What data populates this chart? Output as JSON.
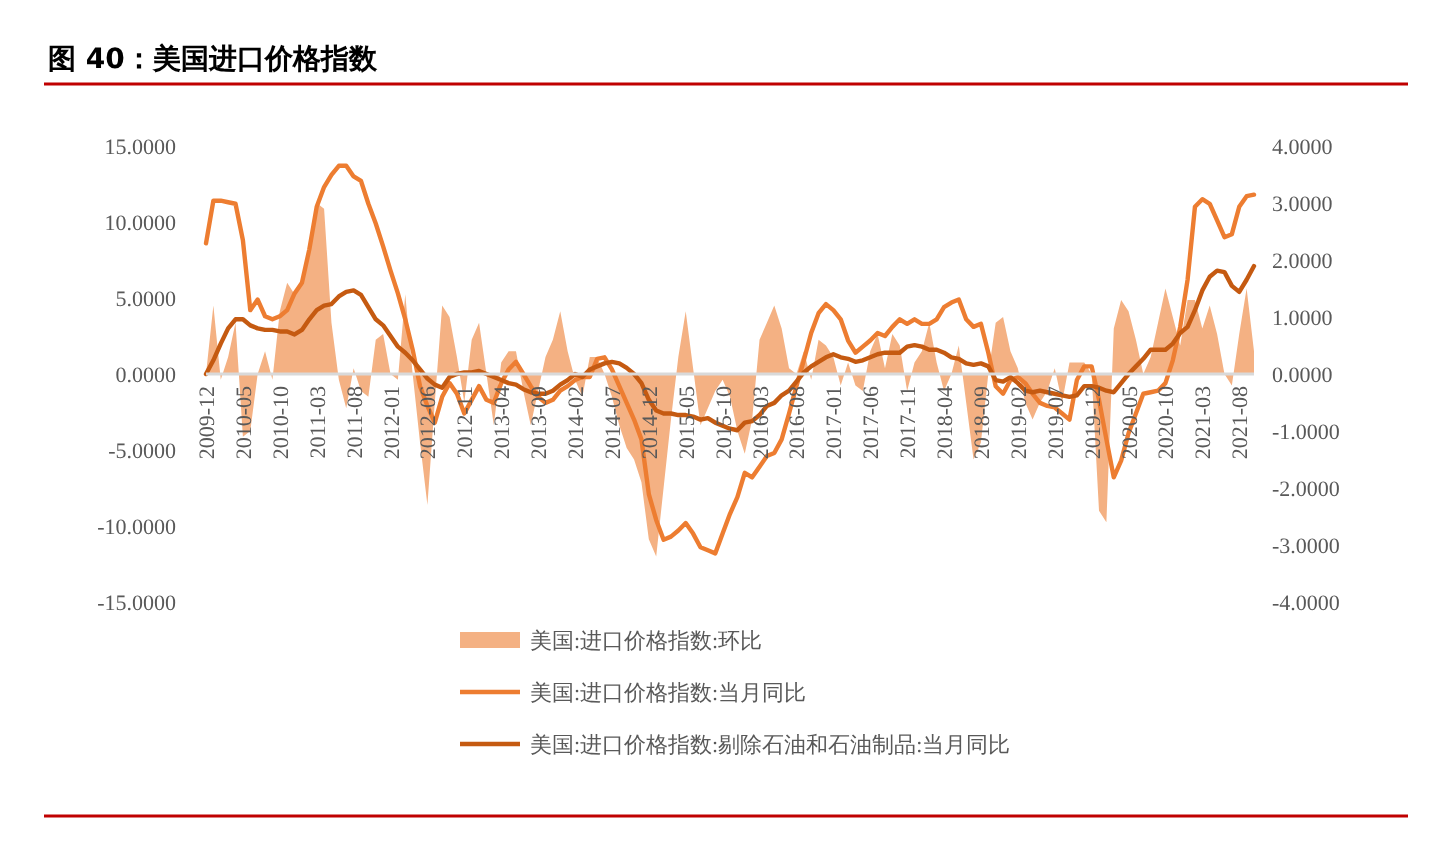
{
  "chart_data": {
    "type": "line",
    "title": "图 40：美国进口价格指数",
    "categories": [
      "2009-12",
      null,
      null,
      null,
      null,
      "2010-05",
      null,
      null,
      null,
      null,
      "2010-10",
      null,
      null,
      null,
      null,
      "2011-03",
      null,
      null,
      null,
      null,
      "2011-08",
      null,
      null,
      null,
      null,
      "2012-01",
      null,
      null,
      null,
      null,
      "2012-06",
      null,
      null,
      null,
      null,
      "2012-11",
      null,
      null,
      null,
      null,
      "2013-04",
      null,
      null,
      null,
      null,
      "2013-09",
      null,
      null,
      null,
      null,
      "2014-02",
      null,
      null,
      null,
      null,
      "2014-07",
      null,
      null,
      null,
      null,
      "2014-12",
      null,
      null,
      null,
      null,
      "2015-05",
      null,
      null,
      null,
      null,
      "2015-10",
      null,
      null,
      null,
      null,
      "2016-03",
      null,
      null,
      null,
      null,
      "2016-08",
      null,
      null,
      null,
      null,
      "2017-01",
      null,
      null,
      null,
      null,
      "2017-06",
      null,
      null,
      null,
      null,
      "2017-11",
      null,
      null,
      null,
      null,
      "2018-04",
      null,
      null,
      null,
      null,
      "2018-09",
      null,
      null,
      null,
      null,
      "2019-02",
      null,
      null,
      null,
      null,
      "2019-07",
      null,
      null,
      null,
      null,
      "2019-12",
      null,
      null,
      null,
      null,
      "2020-05",
      null,
      null,
      null,
      null,
      "2020-10",
      null,
      null,
      null,
      null,
      "2021-03",
      null,
      null,
      null,
      null,
      "2021-08",
      null,
      null
    ],
    "series": [
      {
        "name": "美国:进口价格指数:环比",
        "type": "area",
        "axis": "y2",
        "color": "#f4b183",
        "values": [
          0,
          1.2,
          -0.1,
          0.3,
          0.9,
          -1.1,
          -1.0,
          0.0,
          0.4,
          -0.1,
          1.1,
          1.6,
          1.4,
          1.6,
          2.2,
          3.0,
          2.9,
          0.9,
          -0.1,
          -0.6,
          0.1,
          -0.3,
          -0.4,
          0.6,
          0.7,
          0.0,
          -0.1,
          1.4,
          0.0,
          -1.2,
          -2.3,
          -0.5,
          1.2,
          1.0,
          0.3,
          -0.5,
          0.6,
          0.9,
          0.0,
          -0.9,
          0.2,
          0.4,
          0.4,
          -0.3,
          -0.9,
          -0.3,
          0.3,
          0.6,
          1.1,
          0.4,
          -0.1,
          -0.4,
          0.3,
          0.3,
          0.0,
          -0.4,
          -0.9,
          -1.3,
          -1.5,
          -1.9,
          -2.9,
          -3.2,
          -2.0,
          -0.8,
          0.3,
          1.1,
          0.1,
          -0.9,
          -0.6,
          -0.3,
          -0.1,
          -0.4,
          -1.0,
          -1.4,
          -0.8,
          0.6,
          0.9,
          1.2,
          0.8,
          0.1,
          0.0,
          0.4,
          -0.1,
          0.6,
          0.5,
          0.3,
          -0.2,
          0.2,
          -0.2,
          -0.3,
          0.4,
          0.7,
          0.1,
          0.7,
          0.5,
          -0.3,
          0.2,
          0.4,
          0.9,
          0.2,
          -0.3,
          0.0,
          0.5,
          -0.5,
          -1.5,
          -1.2,
          0.0,
          0.9,
          1.0,
          0.4,
          0.1,
          -0.5,
          -0.8,
          -0.5,
          -0.3,
          0.1,
          -0.5,
          0.2,
          0.2,
          0.2,
          0.0,
          -2.4,
          -2.6,
          0.8,
          1.3,
          1.1,
          0.6,
          0.0,
          0.3,
          0.9,
          1.5,
          1.0,
          0.5,
          1.3,
          1.3,
          0.8,
          1.2,
          0.7,
          0.0,
          -0.2,
          0.7,
          1.5,
          0.4
        ]
      },
      {
        "name": "美国:进口价格指数:当月同比",
        "color": "#ed7d31",
        "values": [
          8.6,
          11.4,
          11.4,
          11.3,
          11.2,
          8.8,
          4.2,
          4.9,
          3.8,
          3.6,
          3.8,
          4.2,
          5.3,
          6.0,
          8.2,
          11.0,
          12.3,
          13.1,
          13.7,
          13.7,
          13.0,
          12.7,
          11.2,
          9.9,
          8.4,
          6.8,
          5.3,
          3.6,
          1.6,
          -0.8,
          -2.1,
          -3.2,
          -1.5,
          -0.6,
          -1.3,
          -2.6,
          -1.7,
          -0.8,
          -1.7,
          -1.9,
          -0.6,
          0.3,
          0.8,
          0.0,
          -0.8,
          -1.5,
          -1.9,
          -1.7,
          -1.1,
          -0.8,
          -0.4,
          -0.2,
          -0.2,
          1.0,
          1.1,
          0.3,
          -0.8,
          -1.9,
          -3.0,
          -4.3,
          -7.9,
          -9.6,
          -10.9,
          -10.7,
          -10.3,
          -9.8,
          -10.5,
          -11.4,
          -11.6,
          -11.8,
          -10.5,
          -9.2,
          -8.1,
          -6.5,
          -6.8,
          -6.1,
          -5.4,
          -5.2,
          -4.3,
          -2.6,
          -0.8,
          0.9,
          2.7,
          4.0,
          4.6,
          4.2,
          3.6,
          2.2,
          1.4,
          1.8,
          2.2,
          2.7,
          2.5,
          3.1,
          3.6,
          3.3,
          3.6,
          3.3,
          3.3,
          3.6,
          4.4,
          4.7,
          4.9,
          3.6,
          3.1,
          3.3,
          1.4,
          -0.8,
          -1.3,
          -0.4,
          -0.2,
          -0.6,
          -1.3,
          -1.9,
          -2.1,
          -2.2,
          -2.6,
          -3.0,
          -0.4,
          0.5,
          0.5,
          -1.7,
          -4.3,
          -6.8,
          -5.7,
          -3.9,
          -2.6,
          -1.3,
          -1.2,
          -1.1,
          -0.6,
          0.9,
          3.1,
          6.2,
          11.0,
          11.5,
          11.2,
          10.1,
          9.0,
          9.2,
          11.0,
          11.7,
          11.8
        ]
      },
      {
        "name": "美国:进口价格指数:剔除石油和石油制品:当月同比",
        "color": "#c55a11",
        "values": [
          0.0,
          0.9,
          2.0,
          3.0,
          3.6,
          3.6,
          3.2,
          3.0,
          2.9,
          2.9,
          2.8,
          2.8,
          2.6,
          2.9,
          3.6,
          4.2,
          4.5,
          4.6,
          5.1,
          5.4,
          5.5,
          5.2,
          4.4,
          3.6,
          3.2,
          2.5,
          1.8,
          1.4,
          0.9,
          0.3,
          -0.3,
          -0.7,
          -0.9,
          -0.2,
          0.0,
          0.1,
          0.1,
          0.2,
          0.0,
          -0.2,
          -0.4,
          -0.6,
          -0.7,
          -1.0,
          -1.2,
          -1.3,
          -1.3,
          -1.1,
          -0.7,
          -0.4,
          0.0,
          -0.2,
          0.3,
          0.5,
          0.7,
          0.8,
          0.7,
          0.4,
          0.0,
          -0.6,
          -1.7,
          -2.4,
          -2.6,
          -2.6,
          -2.7,
          -2.7,
          -2.8,
          -3.0,
          -2.9,
          -3.2,
          -3.4,
          -3.6,
          -3.7,
          -3.2,
          -3.1,
          -2.7,
          -2.1,
          -1.9,
          -1.4,
          -1.1,
          -0.5,
          0.1,
          0.5,
          0.8,
          1.1,
          1.3,
          1.1,
          1.0,
          0.8,
          0.9,
          1.1,
          1.3,
          1.4,
          1.4,
          1.4,
          1.8,
          1.9,
          1.8,
          1.6,
          1.6,
          1.4,
          1.1,
          1.0,
          0.7,
          0.6,
          0.7,
          0.5,
          -0.4,
          -0.5,
          -0.2,
          -0.6,
          -1.1,
          -1.2,
          -1.1,
          -1.2,
          -1.3,
          -1.4,
          -1.5,
          -1.4,
          -0.8,
          -0.8,
          -0.9,
          -1.1,
          -1.2,
          -0.6,
          0.0,
          0.5,
          1.0,
          1.6,
          1.6,
          1.6,
          2.0,
          2.7,
          3.1,
          4.2,
          5.5,
          6.4,
          6.8,
          6.7,
          5.8,
          5.4,
          6.2,
          7.1
        ]
      }
    ],
    "ylim": [
      -15,
      15
    ],
    "yticks": [
      {
        "value": 15,
        "label": "15.0000"
      },
      {
        "value": 10,
        "label": "10.0000"
      },
      {
        "value": 5,
        "label": "5.0000"
      },
      {
        "value": 0,
        "label": "0.0000"
      },
      {
        "value": -5,
        "label": "-5.0000"
      },
      {
        "value": -10,
        "label": "-10.0000"
      },
      {
        "value": -15,
        "label": "-15.0000"
      }
    ],
    "y2lim": [
      -4,
      4
    ],
    "y2ticks": [
      {
        "value": 4,
        "label": "4.0000"
      },
      {
        "value": 3,
        "label": "3.0000"
      },
      {
        "value": 2,
        "label": "2.0000"
      },
      {
        "value": 1,
        "label": "1.0000"
      },
      {
        "value": 0,
        "label": "0.0000"
      },
      {
        "value": -1,
        "label": "-1.0000"
      },
      {
        "value": -2,
        "label": "-2.0000"
      },
      {
        "value": -3,
        "label": "-3.0000"
      },
      {
        "value": -4,
        "label": "-4.0000"
      }
    ],
    "legend": "bottom",
    "grid": false
  }
}
